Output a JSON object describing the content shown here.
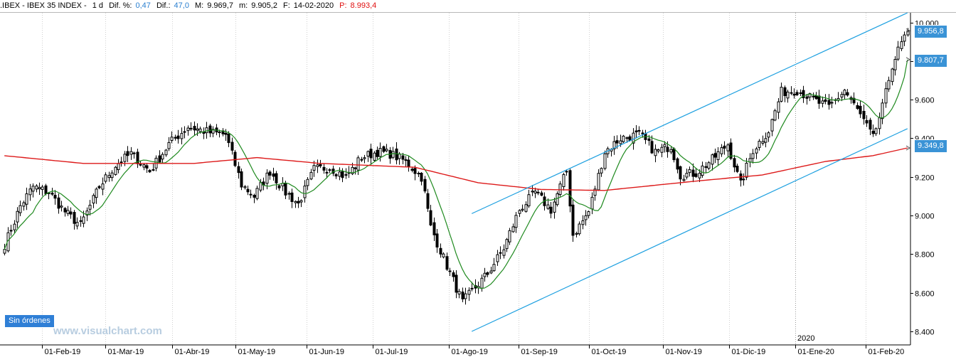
{
  "header": {
    "symbol": ".IBEX - IBEX 35 INDEX -",
    "period": "1 d",
    "dif_pct_label": "Dif. %:",
    "dif_pct_value": "0,47",
    "dif_label": "Dif.:",
    "dif_value": "47,0",
    "max_label": "M:",
    "max_value": "9.969,7",
    "min_label": "m:",
    "min_value": "9.905,2",
    "date_label": "F:",
    "date_value": "14-02-2020",
    "p_label": "P:",
    "p_value": "8.993,4"
  },
  "tags": {
    "last_price": "9.956,8",
    "ma_short": "9.807,7",
    "ma_long": "9.349,8"
  },
  "orders_label": "Sin órdenes",
  "watermark": "www.visualchart.com",
  "year_marker": "2020",
  "colors": {
    "up_candle": "#ffffff",
    "down_candle": "#000000",
    "ma_short": "#1f8a1f",
    "ma_long": "#dd1a1a",
    "channel": "#1ea0e0",
    "tag": "#3a93d6",
    "grid": "#d0d0d0"
  },
  "chart_data": {
    "type": "candlestick",
    "title": ".IBEX - IBEX 35 INDEX - 1 d",
    "y_ticks": [
      8400,
      8600,
      8800,
      9000,
      9200,
      9400,
      9600,
      9800,
      10000
    ],
    "y_tick_labels": [
      "8.400",
      "8.600",
      "8.800",
      "9.000",
      "9.200",
      "9.400",
      "9.600",
      "9.800",
      "10.000"
    ],
    "ylim": [
      8330,
      10050
    ],
    "x_tick_labels": [
      "01-Feb-19",
      "01-Mar-19",
      "01-Abr-19",
      "01-May-19",
      "01-Jun-19",
      "01-Jul-19",
      "01-Ago-19",
      "01-Sep-19",
      "01-Oct-19",
      "01-Nov-19",
      "01-Dic-19",
      "01-Ene-20",
      "01-Feb-20"
    ],
    "price_anchors": [
      [
        0,
        8850
      ],
      [
        5,
        9050
      ],
      [
        9,
        9150
      ],
      [
        14,
        9120
      ],
      [
        19,
        9020
      ],
      [
        24,
        8950
      ],
      [
        30,
        9150
      ],
      [
        35,
        9260
      ],
      [
        40,
        9320
      ],
      [
        46,
        9230
      ],
      [
        52,
        9370
      ],
      [
        58,
        9460
      ],
      [
        65,
        9430
      ],
      [
        70,
        9420
      ],
      [
        75,
        9160
      ],
      [
        79,
        9100
      ],
      [
        84,
        9230
      ],
      [
        89,
        9120
      ],
      [
        93,
        9060
      ],
      [
        98,
        9240
      ],
      [
        103,
        9250
      ],
      [
        108,
        9200
      ],
      [
        113,
        9300
      ],
      [
        118,
        9330
      ],
      [
        122,
        9320
      ],
      [
        127,
        9280
      ],
      [
        132,
        9200
      ],
      [
        135,
        8940
      ],
      [
        140,
        8740
      ],
      [
        145,
        8550
      ],
      [
        148,
        8610
      ],
      [
        153,
        8700
      ],
      [
        158,
        8830
      ],
      [
        163,
        9030
      ],
      [
        168,
        9120
      ],
      [
        173,
        9030
      ],
      [
        178,
        9230
      ],
      [
        180,
        8900
      ],
      [
        185,
        9020
      ],
      [
        190,
        9330
      ],
      [
        195,
        9400
      ],
      [
        201,
        9420
      ],
      [
        206,
        9330
      ],
      [
        211,
        9360
      ],
      [
        214,
        9210
      ],
      [
        219,
        9220
      ],
      [
        224,
        9290
      ],
      [
        229,
        9370
      ],
      [
        233,
        9160
      ],
      [
        237,
        9340
      ],
      [
        242,
        9440
      ],
      [
        246,
        9640
      ],
      [
        251,
        9650
      ],
      [
        256,
        9600
      ],
      [
        261,
        9560
      ],
      [
        266,
        9650
      ],
      [
        271,
        9520
      ],
      [
        275,
        9400
      ],
      [
        278,
        9560
      ],
      [
        281,
        9780
      ],
      [
        284,
        9890
      ],
      [
        286,
        9957
      ]
    ],
    "ma_long_anchors": [
      [
        0,
        9310
      ],
      [
        25,
        9270
      ],
      [
        60,
        9270
      ],
      [
        80,
        9300
      ],
      [
        100,
        9270
      ],
      [
        130,
        9250
      ],
      [
        150,
        9170
      ],
      [
        170,
        9135
      ],
      [
        190,
        9130
      ],
      [
        220,
        9180
      ],
      [
        240,
        9210
      ],
      [
        260,
        9280
      ],
      [
        275,
        9310
      ],
      [
        286,
        9350
      ]
    ],
    "channel_lines": [
      {
        "name": "upper",
        "x": [
          148,
          286
        ],
        "y": [
          9010,
          10050
        ]
      },
      {
        "name": "lower",
        "x": [
          148,
          286
        ],
        "y": [
          8400,
          9450
        ]
      }
    ],
    "last_price": 9956.8,
    "ma_short_value": 9807.7,
    "ma_long_value": 9349.8,
    "grid": true
  }
}
